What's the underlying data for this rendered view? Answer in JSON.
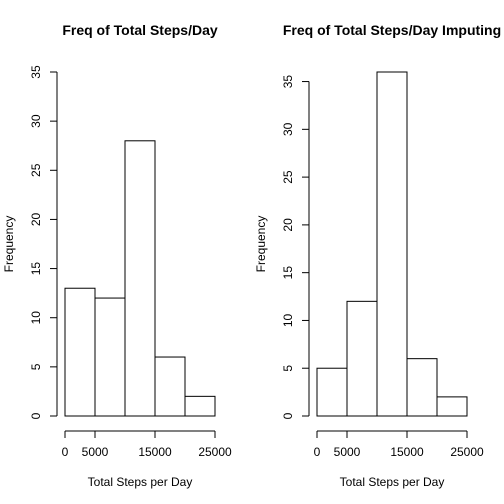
{
  "chart_data": [
    {
      "type": "bar",
      "title": "Freq of Total Steps/Day",
      "xlabel": "Total Steps per Day",
      "ylabel": "Frequency",
      "bins": [
        [
          0,
          5000
        ],
        [
          5000,
          10000
        ],
        [
          10000,
          15000
        ],
        [
          15000,
          20000
        ],
        [
          20000,
          25000
        ]
      ],
      "values": [
        13,
        12,
        28,
        6,
        2
      ],
      "xticks": [
        0,
        5000,
        15000,
        25000
      ],
      "xtick_labels": [
        "0",
        "5000",
        "15000",
        "25000"
      ],
      "yticks": [
        0,
        5,
        10,
        15,
        20,
        25,
        30,
        35
      ],
      "ylim": [
        0,
        35
      ],
      "xlim": [
        0,
        25000
      ],
      "grid": false
    },
    {
      "type": "bar",
      "title": "Freq of Total Steps/Day Imputing",
      "xlabel": "Total Steps per Day",
      "ylabel": "Frequency",
      "bins": [
        [
          0,
          5000
        ],
        [
          5000,
          10000
        ],
        [
          10000,
          15000
        ],
        [
          15000,
          20000
        ],
        [
          20000,
          25000
        ]
      ],
      "values": [
        5,
        12,
        36,
        6,
        2
      ],
      "xticks": [
        0,
        5000,
        15000,
        25000
      ],
      "xtick_labels": [
        "0",
        "5000",
        "15000",
        "25000"
      ],
      "yticks": [
        0,
        5,
        10,
        15,
        20,
        25,
        30,
        35
      ],
      "ylim": [
        0,
        36
      ],
      "xlim": [
        0,
        25000
      ],
      "grid": false
    }
  ]
}
